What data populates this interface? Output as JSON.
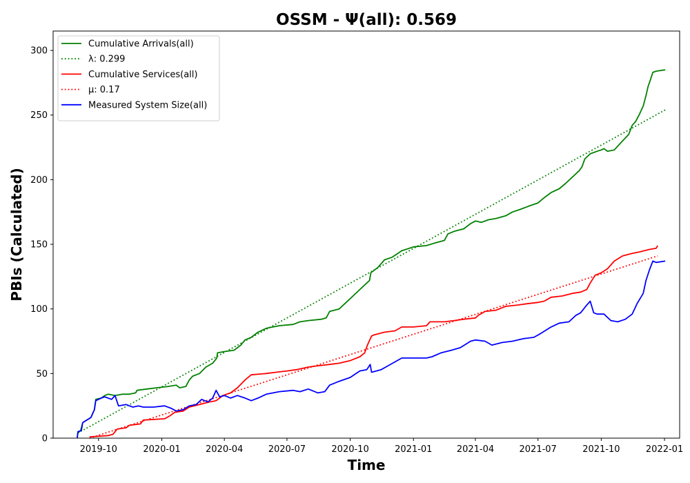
{
  "chart_data": {
    "type": "line",
    "title": "OSSM -  Ψ(all): 0.569",
    "xlabel": "Time",
    "ylabel": "PBIs (Calculated)",
    "x_axis": {
      "kind": "date",
      "range": [
        "2019-07-27",
        "2022-01-23"
      ],
      "ticks": [
        {
          "date": "2019-10-01",
          "label": "2019-10"
        },
        {
          "date": "2020-01-01",
          "label": "2020-01"
        },
        {
          "date": "2020-04-01",
          "label": "2020-04"
        },
        {
          "date": "2020-07-01",
          "label": "2020-07"
        },
        {
          "date": "2020-10-01",
          "label": "2020-10"
        },
        {
          "date": "2021-01-01",
          "label": "2021-01"
        },
        {
          "date": "2021-04-01",
          "label": "2021-04"
        },
        {
          "date": "2021-07-01",
          "label": "2021-07"
        },
        {
          "date": "2021-10-01",
          "label": "2021-10"
        },
        {
          "date": "2022-01-01",
          "label": "2022-01"
        }
      ]
    },
    "y_axis": {
      "range": [
        0,
        315
      ],
      "ticks": [
        {
          "value": 0,
          "label": "0"
        },
        {
          "value": 50,
          "label": "50"
        },
        {
          "value": 100,
          "label": "100"
        },
        {
          "value": 150,
          "label": "150"
        },
        {
          "value": 200,
          "label": "200"
        },
        {
          "value": 250,
          "label": "250"
        },
        {
          "value": 300,
          "label": "300"
        }
      ]
    },
    "grid": false,
    "legend_position": "top-left",
    "series": [
      {
        "name": "Cumulative Arrivals(all)",
        "color": "#008000",
        "style": "solid",
        "points": [
          [
            "2019-08-31",
            0
          ],
          [
            "2019-09-01",
            4
          ],
          [
            "2019-09-05",
            6
          ],
          [
            "2019-09-08",
            12
          ],
          [
            "2019-09-14",
            14
          ],
          [
            "2019-09-20",
            16
          ],
          [
            "2019-09-25",
            22
          ],
          [
            "2019-09-27",
            30
          ],
          [
            "2019-10-05",
            31
          ],
          [
            "2019-10-10",
            33
          ],
          [
            "2019-10-15",
            34
          ],
          [
            "2019-10-25",
            33
          ],
          [
            "2019-11-05",
            34
          ],
          [
            "2019-11-15",
            34
          ],
          [
            "2019-11-24",
            35
          ],
          [
            "2019-11-26",
            37
          ],
          [
            "2019-12-10",
            38
          ],
          [
            "2019-12-25",
            39
          ],
          [
            "2020-01-10",
            40
          ],
          [
            "2020-01-22",
            41
          ],
          [
            "2020-01-27",
            39
          ],
          [
            "2020-02-05",
            40
          ],
          [
            "2020-02-10",
            45
          ],
          [
            "2020-02-15",
            48
          ],
          [
            "2020-02-25",
            50
          ],
          [
            "2020-03-05",
            55
          ],
          [
            "2020-03-15",
            58
          ],
          [
            "2020-03-21",
            62
          ],
          [
            "2020-03-22",
            66
          ],
          [
            "2020-04-01",
            67
          ],
          [
            "2020-04-15",
            68
          ],
          [
            "2020-04-25",
            72
          ],
          [
            "2020-05-01",
            76
          ],
          [
            "2020-05-10",
            78
          ],
          [
            "2020-05-20",
            82
          ],
          [
            "2020-06-01",
            85
          ],
          [
            "2020-06-20",
            87
          ],
          [
            "2020-07-10",
            88
          ],
          [
            "2020-07-20",
            90
          ],
          [
            "2020-08-01",
            91
          ],
          [
            "2020-08-20",
            92
          ],
          [
            "2020-08-27",
            93
          ],
          [
            "2020-09-01",
            98
          ],
          [
            "2020-09-15",
            100
          ],
          [
            "2020-09-25",
            105
          ],
          [
            "2020-10-05",
            110
          ],
          [
            "2020-10-15",
            115
          ],
          [
            "2020-10-25",
            120
          ],
          [
            "2020-10-29",
            122
          ],
          [
            "2020-10-31",
            128
          ],
          [
            "2020-11-10",
            132
          ],
          [
            "2020-11-20",
            138
          ],
          [
            "2020-12-01",
            140
          ],
          [
            "2020-12-15",
            145
          ],
          [
            "2021-01-01",
            148
          ],
          [
            "2021-01-20",
            149
          ],
          [
            "2021-02-01",
            151
          ],
          [
            "2021-02-15",
            153
          ],
          [
            "2021-02-20",
            158
          ],
          [
            "2021-03-01",
            160
          ],
          [
            "2021-03-15",
            162
          ],
          [
            "2021-03-25",
            166
          ],
          [
            "2021-04-01",
            168
          ],
          [
            "2021-04-10",
            167
          ],
          [
            "2021-04-20",
            169
          ],
          [
            "2021-05-01",
            170
          ],
          [
            "2021-05-15",
            172
          ],
          [
            "2021-05-25",
            175
          ],
          [
            "2021-06-05",
            177
          ],
          [
            "2021-06-20",
            180
          ],
          [
            "2021-07-01",
            182
          ],
          [
            "2021-07-10",
            186
          ],
          [
            "2021-07-20",
            190
          ],
          [
            "2021-08-01",
            193
          ],
          [
            "2021-08-10",
            197
          ],
          [
            "2021-08-20",
            202
          ],
          [
            "2021-08-30",
            207
          ],
          [
            "2021-09-03",
            210
          ],
          [
            "2021-09-07",
            216
          ],
          [
            "2021-09-15",
            220
          ],
          [
            "2021-09-25",
            222
          ],
          [
            "2021-10-01",
            223
          ],
          [
            "2021-10-05",
            224
          ],
          [
            "2021-10-10",
            222
          ],
          [
            "2021-10-20",
            223
          ],
          [
            "2021-10-25",
            226
          ],
          [
            "2021-11-01",
            230
          ],
          [
            "2021-11-10",
            235
          ],
          [
            "2021-11-15",
            242
          ],
          [
            "2021-11-20",
            245
          ],
          [
            "2021-11-25",
            250
          ],
          [
            "2021-12-01",
            257
          ],
          [
            "2021-12-05",
            265
          ],
          [
            "2021-12-08",
            272
          ],
          [
            "2021-12-12",
            278
          ],
          [
            "2021-12-15",
            283
          ],
          [
            "2021-12-20",
            284
          ],
          [
            "2022-01-02",
            285
          ]
        ]
      },
      {
        "name": "λ: 0.299",
        "color": "#008000",
        "style": "dotted",
        "points": [
          [
            "2019-09-01",
            4
          ],
          [
            "2022-01-02",
            254
          ]
        ]
      },
      {
        "name": "Cumulative Services(all)",
        "color": "#ff0000",
        "style": "solid",
        "points": [
          [
            "2019-09-18",
            1
          ],
          [
            "2019-10-15",
            2
          ],
          [
            "2019-10-22",
            3
          ],
          [
            "2019-10-28",
            7
          ],
          [
            "2019-11-10",
            8
          ],
          [
            "2019-11-15",
            10
          ],
          [
            "2019-12-01",
            11
          ],
          [
            "2019-12-05",
            14
          ],
          [
            "2020-01-05",
            15
          ],
          [
            "2020-01-12",
            17
          ],
          [
            "2020-01-20",
            20
          ],
          [
            "2020-02-01",
            21
          ],
          [
            "2020-02-10",
            24
          ],
          [
            "2020-02-25",
            26
          ],
          [
            "2020-03-10",
            28
          ],
          [
            "2020-03-20",
            29
          ],
          [
            "2020-03-30",
            33
          ],
          [
            "2020-04-10",
            35
          ],
          [
            "2020-04-20",
            39
          ],
          [
            "2020-05-01",
            45
          ],
          [
            "2020-05-10",
            49
          ],
          [
            "2020-06-01",
            50
          ],
          [
            "2020-06-15",
            51
          ],
          [
            "2020-07-01",
            52
          ],
          [
            "2020-07-15",
            53
          ],
          [
            "2020-08-01",
            55
          ],
          [
            "2020-08-15",
            56
          ],
          [
            "2020-09-01",
            57
          ],
          [
            "2020-09-15",
            58
          ],
          [
            "2020-10-01",
            60
          ],
          [
            "2020-10-15",
            63
          ],
          [
            "2020-10-22",
            66
          ],
          [
            "2020-10-26",
            72
          ],
          [
            "2020-11-01",
            79
          ],
          [
            "2020-11-05",
            80
          ],
          [
            "2020-11-20",
            82
          ],
          [
            "2020-12-05",
            83
          ],
          [
            "2020-12-15",
            86
          ],
          [
            "2021-01-01",
            86
          ],
          [
            "2021-01-20",
            87
          ],
          [
            "2021-01-25",
            90
          ],
          [
            "2021-02-15",
            90
          ],
          [
            "2021-03-01",
            91
          ],
          [
            "2021-03-15",
            92
          ],
          [
            "2021-04-01",
            93
          ],
          [
            "2021-04-05",
            95
          ],
          [
            "2021-04-15",
            98
          ],
          [
            "2021-05-01",
            99
          ],
          [
            "2021-05-15",
            102
          ],
          [
            "2021-06-01",
            103
          ],
          [
            "2021-06-15",
            104
          ],
          [
            "2021-07-01",
            105
          ],
          [
            "2021-07-10",
            106
          ],
          [
            "2021-07-20",
            109
          ],
          [
            "2021-08-05",
            110
          ],
          [
            "2021-08-20",
            112
          ],
          [
            "2021-09-01",
            113
          ],
          [
            "2021-09-10",
            115
          ],
          [
            "2021-09-15",
            120
          ],
          [
            "2021-09-22",
            126
          ],
          [
            "2021-10-01",
            128
          ],
          [
            "2021-10-10",
            131
          ],
          [
            "2021-10-20",
            137
          ],
          [
            "2021-11-01",
            141
          ],
          [
            "2021-11-15",
            143
          ],
          [
            "2021-11-25",
            144
          ],
          [
            "2021-12-10",
            146
          ],
          [
            "2021-12-20",
            147
          ],
          [
            "2021-12-22",
            149
          ]
        ]
      },
      {
        "name": "μ: 0.17",
        "color": "#ff0000",
        "style": "dotted",
        "points": [
          [
            "2019-09-18",
            0
          ],
          [
            "2021-12-22",
            141
          ]
        ]
      },
      {
        "name": "Measured System Size(all)",
        "color": "#0000ff",
        "style": "solid",
        "points": [
          [
            "2019-08-31",
            0
          ],
          [
            "2019-09-01",
            5
          ],
          [
            "2019-09-06",
            6
          ],
          [
            "2019-09-08",
            12
          ],
          [
            "2019-09-14",
            14
          ],
          [
            "2019-09-20",
            16
          ],
          [
            "2019-09-25",
            22
          ],
          [
            "2019-09-27",
            29
          ],
          [
            "2019-10-05",
            31
          ],
          [
            "2019-10-10",
            32
          ],
          [
            "2019-10-20",
            30
          ],
          [
            "2019-10-25",
            33
          ],
          [
            "2019-10-30",
            25
          ],
          [
            "2019-11-10",
            26
          ],
          [
            "2019-11-20",
            24
          ],
          [
            "2019-11-28",
            25
          ],
          [
            "2019-12-05",
            24
          ],
          [
            "2019-12-20",
            24
          ],
          [
            "2020-01-05",
            25
          ],
          [
            "2020-01-15",
            23
          ],
          [
            "2020-01-22",
            21
          ],
          [
            "2020-02-01",
            22
          ],
          [
            "2020-02-10",
            25
          ],
          [
            "2020-02-20",
            26
          ],
          [
            "2020-02-28",
            30
          ],
          [
            "2020-03-08",
            28
          ],
          [
            "2020-03-15",
            31
          ],
          [
            "2020-03-20",
            37
          ],
          [
            "2020-03-25",
            32
          ],
          [
            "2020-04-01",
            33
          ],
          [
            "2020-04-10",
            31
          ],
          [
            "2020-04-20",
            33
          ],
          [
            "2020-05-01",
            31
          ],
          [
            "2020-05-10",
            29
          ],
          [
            "2020-05-20",
            31
          ],
          [
            "2020-06-01",
            34
          ],
          [
            "2020-06-20",
            36
          ],
          [
            "2020-07-10",
            37
          ],
          [
            "2020-07-20",
            36
          ],
          [
            "2020-08-01",
            38
          ],
          [
            "2020-08-15",
            35
          ],
          [
            "2020-08-25",
            36
          ],
          [
            "2020-09-01",
            41
          ],
          [
            "2020-09-15",
            44
          ],
          [
            "2020-10-01",
            47
          ],
          [
            "2020-10-15",
            52
          ],
          [
            "2020-10-25",
            53
          ],
          [
            "2020-10-30",
            57
          ],
          [
            "2020-11-01",
            51
          ],
          [
            "2020-11-15",
            53
          ],
          [
            "2020-11-25",
            56
          ],
          [
            "2020-12-05",
            59
          ],
          [
            "2020-12-15",
            62
          ],
          [
            "2021-01-01",
            62
          ],
          [
            "2021-01-20",
            62
          ],
          [
            "2021-01-28",
            63
          ],
          [
            "2021-02-10",
            66
          ],
          [
            "2021-02-25",
            68
          ],
          [
            "2021-03-10",
            70
          ],
          [
            "2021-03-25",
            75
          ],
          [
            "2021-04-01",
            76
          ],
          [
            "2021-04-15",
            75
          ],
          [
            "2021-04-25",
            72
          ],
          [
            "2021-05-10",
            74
          ],
          [
            "2021-05-25",
            75
          ],
          [
            "2021-06-10",
            77
          ],
          [
            "2021-06-25",
            78
          ],
          [
            "2021-07-05",
            81
          ],
          [
            "2021-07-20",
            86
          ],
          [
            "2021-08-01",
            89
          ],
          [
            "2021-08-15",
            90
          ],
          [
            "2021-08-25",
            95
          ],
          [
            "2021-09-01",
            97
          ],
          [
            "2021-09-10",
            103
          ],
          [
            "2021-09-15",
            106
          ],
          [
            "2021-09-20",
            97
          ],
          [
            "2021-09-25",
            96
          ],
          [
            "2021-10-05",
            96
          ],
          [
            "2021-10-15",
            91
          ],
          [
            "2021-10-25",
            90
          ],
          [
            "2021-11-05",
            92
          ],
          [
            "2021-11-15",
            96
          ],
          [
            "2021-11-22",
            104
          ],
          [
            "2021-12-01",
            112
          ],
          [
            "2021-12-05",
            122
          ],
          [
            "2021-12-10",
            130
          ],
          [
            "2021-12-15",
            137
          ],
          [
            "2021-12-20",
            136
          ],
          [
            "2022-01-02",
            137
          ]
        ]
      }
    ]
  }
}
